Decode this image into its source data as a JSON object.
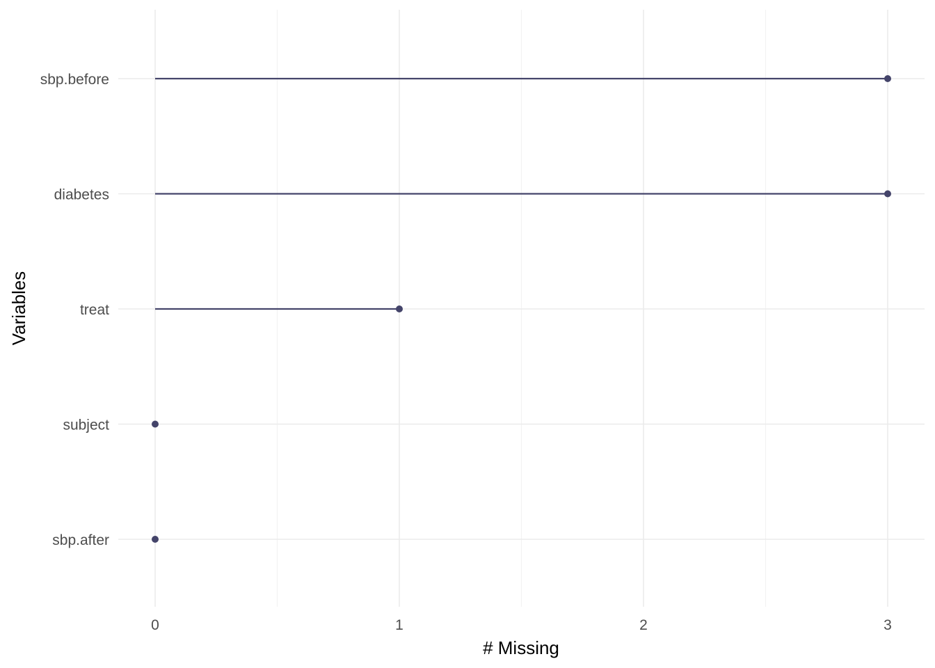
{
  "chart_data": {
    "type": "lollipop",
    "orientation": "horizontal",
    "title": "",
    "xlabel": "# Missing",
    "ylabel": "Variables",
    "categories": [
      "sbp.before",
      "diabetes",
      "treat",
      "subject",
      "sbp.after"
    ],
    "values": [
      3,
      3,
      1,
      0,
      0
    ],
    "xlim": [
      0,
      3
    ],
    "xticks": [
      "0",
      "1",
      "2",
      "3"
    ],
    "grid": true,
    "legend": "none",
    "colors": {
      "mark": "#44446a",
      "grid_major": "#ebebeb",
      "grid_minor": "#f3f3f3",
      "tick_text": "#4d4d4d"
    }
  }
}
